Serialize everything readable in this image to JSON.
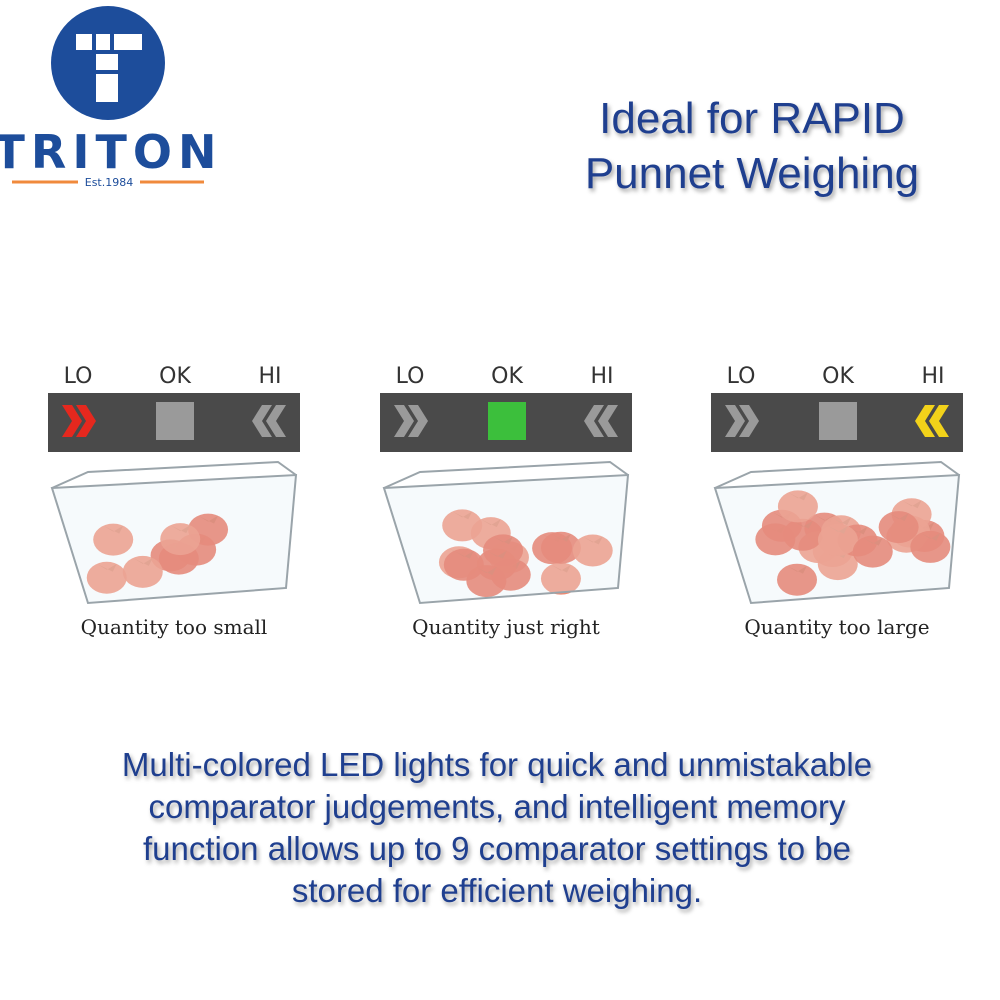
{
  "logo": {
    "name": "TRITON",
    "established": "Est.1984"
  },
  "headline": [
    "Ideal for RAPID",
    "Punnet Weighing"
  ],
  "panels": [
    {
      "labels": [
        "LO",
        "OK",
        "HI"
      ],
      "caption": "Quantity too small"
    },
    {
      "labels": [
        "LO",
        "OK",
        "HI"
      ],
      "caption": "Quantity just right"
    },
    {
      "labels": [
        "LO",
        "OK",
        "HI"
      ],
      "caption": "Quantity too large"
    }
  ],
  "description": [
    "Multi-colored LED lights for quick and unmistakable",
    "comparator judgements, and intelligent memory",
    "function allows up to 9 comparator settings to be",
    "stored for efficient weighing."
  ]
}
